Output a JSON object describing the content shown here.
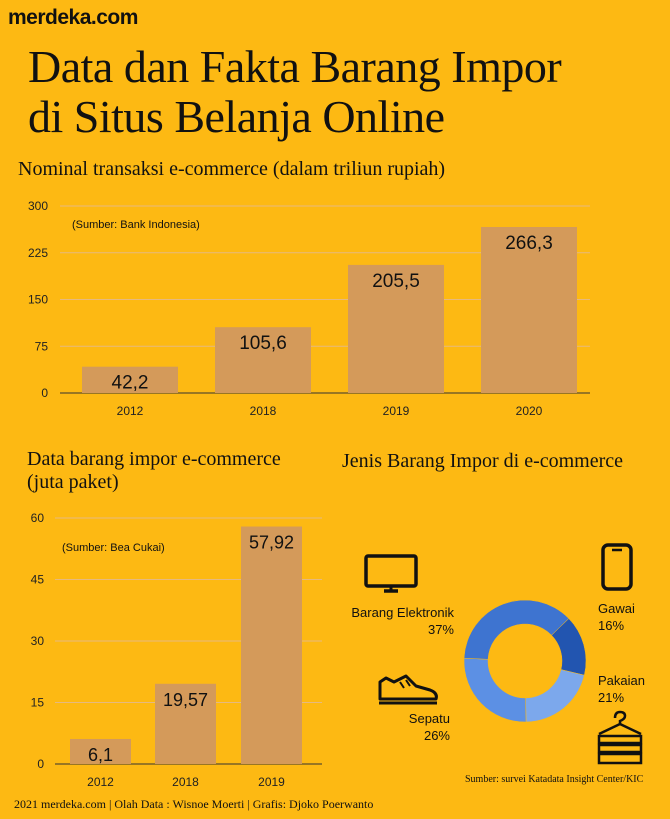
{
  "brand": "merdeka.com",
  "headline": {
    "line1": "Data dan Fakta Barang Impor",
    "line2": "di Situs Belanja Online"
  },
  "colors": {
    "background": "#FDB913",
    "bar": "#D49A5A",
    "grid": "#E6B980",
    "donut": [
      "#3E74D0",
      "#2255B0",
      "#7CA8EC",
      "#5C90E4"
    ]
  },
  "chart_data": [
    {
      "type": "bar",
      "title": "Nominal transaksi e-commerce (dalam triliun rupiah)",
      "source_note": "(Sumber: Bank Indonesia)",
      "categories": [
        "2012",
        "2018",
        "2019",
        "2020"
      ],
      "values": [
        42.2,
        105.6,
        205.5,
        266.3
      ],
      "value_labels": [
        "42,2",
        "105,6",
        "205,5",
        "266,3"
      ],
      "yticks": [
        "0",
        "75",
        "150",
        "225",
        "300"
      ],
      "ylim": [
        0,
        300
      ],
      "grid": true
    },
    {
      "type": "bar",
      "title_line1": "Data barang impor e-commerce",
      "title_line2": "(juta paket)",
      "source_note": "(Sumber: Bea Cukai)",
      "categories": [
        "2012",
        "2018",
        "2019"
      ],
      "values": [
        6.1,
        19.57,
        57.92
      ],
      "value_labels": [
        "6,1",
        "19,57",
        "57,92"
      ],
      "yticks": [
        "0",
        "15",
        "30",
        "45",
        "60"
      ],
      "ylim": [
        0,
        60
      ],
      "grid": true
    },
    {
      "type": "pie",
      "title": "Jenis Barang Impor di e-commerce",
      "slices": [
        {
          "name": "Barang Elektronik",
          "value": 37,
          "label": "37%",
          "icon": "tv-icon"
        },
        {
          "name": "Gawai",
          "value": 16,
          "label": "16%",
          "icon": "smartphone-icon"
        },
        {
          "name": "Pakaian",
          "value": 21,
          "label": "21%",
          "icon": "clothes-icon"
        },
        {
          "name": "Sepatu",
          "value": 26,
          "label": "26%",
          "icon": "shoe-icon"
        }
      ],
      "source_note": "Sumber: survei Katadata Insight Center/KIC"
    }
  ],
  "footer": "2021 merdeka.com  |  Olah Data : Wisnoe Moerti | Grafis: Djoko Poerwanto"
}
